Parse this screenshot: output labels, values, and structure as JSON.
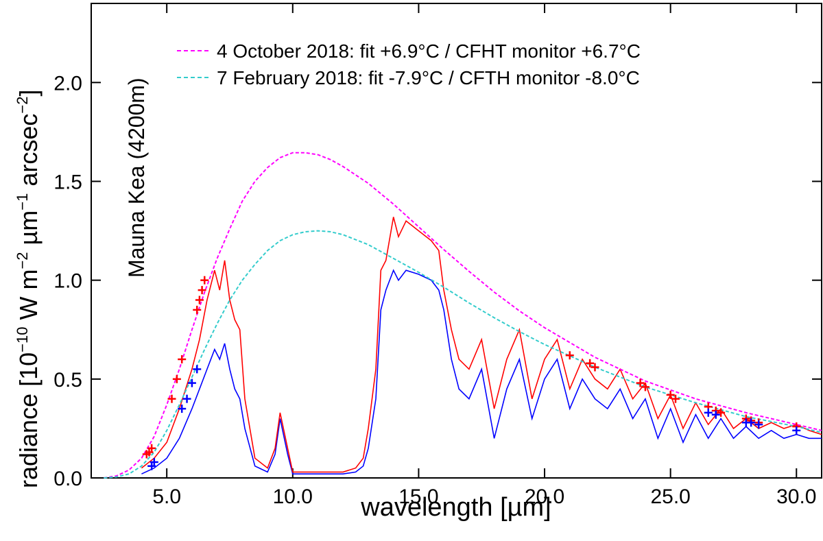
{
  "chart_data": {
    "type": "line",
    "xlabel": "wavelength [µm]",
    "ylabel": "radiance [10",
    "ylabel_exp1": "−10",
    "ylabel_mid1": " W m",
    "ylabel_exp2": "−2",
    "ylabel_mid2": " µm",
    "ylabel_exp3": "−1",
    "ylabel_mid3": " arcsec",
    "ylabel_exp4": "−2",
    "ylabel_end": "]",
    "annotation": "Mauna Kea (4200m)",
    "xlim": [
      2.0,
      31.0
    ],
    "ylim": [
      0.0,
      2.4
    ],
    "x_ticks": [
      5.0,
      10.0,
      15.0,
      20.0,
      25.0,
      30.0
    ],
    "x_tick_labels": [
      "5.0",
      "10.0",
      "15.0",
      "20.0",
      "25.0",
      "30.0"
    ],
    "y_ticks": [
      0.0,
      0.5,
      1.0,
      1.5,
      2.0
    ],
    "y_tick_labels": [
      "0.0",
      "0.5",
      "1.0",
      "1.5",
      "2.0"
    ],
    "grid": false,
    "legend_position": "top-right",
    "colors": {
      "fit_october": "#ff00ff",
      "fit_february": "#33cccc",
      "spectrum_october": "#ff0000",
      "spectrum_february": "#0000ff"
    },
    "series": [
      {
        "name": "4 October 2018: fit +6.9°C / CFHT monitor +6.7°C",
        "style": "dashed",
        "color": "#ff00ff",
        "x": [
          2.5,
          3.0,
          3.5,
          4.0,
          4.5,
          5.0,
          5.5,
          6.0,
          6.5,
          7.0,
          7.5,
          8.0,
          8.5,
          9.0,
          9.5,
          10.0,
          10.5,
          11.0,
          11.5,
          12.0,
          13.0,
          14.0,
          15.0,
          16.0,
          17.0,
          18.0,
          19.0,
          20.0,
          22.0,
          24.0,
          26.0,
          28.0,
          30.0,
          31.0
        ],
        "y": [
          0.0,
          0.01,
          0.04,
          0.1,
          0.21,
          0.37,
          0.55,
          0.75,
          0.94,
          1.11,
          1.26,
          1.4,
          1.5,
          1.57,
          1.62,
          1.645,
          1.645,
          1.635,
          1.61,
          1.575,
          1.49,
          1.385,
          1.27,
          1.155,
          1.045,
          0.94,
          0.845,
          0.76,
          0.61,
          0.49,
          0.4,
          0.33,
          0.27,
          0.24
        ]
      },
      {
        "name": "7 February 2018: fit -7.9°C / CFTH monitor -8.0°C",
        "style": "dashed",
        "color": "#33cccc",
        "x": [
          2.5,
          3.0,
          3.5,
          4.0,
          4.5,
          5.0,
          5.5,
          6.0,
          6.5,
          7.0,
          7.5,
          8.0,
          8.5,
          9.0,
          9.5,
          10.0,
          10.5,
          11.0,
          11.5,
          12.0,
          13.0,
          14.0,
          15.0,
          16.0,
          17.0,
          18.0,
          19.0,
          20.0,
          22.0,
          24.0,
          26.0,
          28.0,
          30.0,
          31.0
        ],
        "y": [
          0.0,
          0.005,
          0.02,
          0.06,
          0.13,
          0.24,
          0.37,
          0.51,
          0.65,
          0.78,
          0.9,
          1.0,
          1.08,
          1.15,
          1.2,
          1.23,
          1.245,
          1.25,
          1.245,
          1.23,
          1.18,
          1.11,
          1.04,
          0.965,
          0.885,
          0.81,
          0.74,
          0.675,
          0.56,
          0.46,
          0.38,
          0.31,
          0.26,
          0.23
        ]
      },
      {
        "name": "",
        "style": "solid",
        "color": "#ff0000",
        "x": [
          4.0,
          4.5,
          5.0,
          5.5,
          6.0,
          6.3,
          6.6,
          6.9,
          7.1,
          7.3,
          7.5,
          7.7,
          7.9,
          8.1,
          8.5,
          9.0,
          9.3,
          9.5,
          9.8,
          10.0,
          10.5,
          11.0,
          11.5,
          12.0,
          12.5,
          12.8,
          13.0,
          13.3,
          13.5,
          13.7,
          14.0,
          14.2,
          14.5,
          15.0,
          15.5,
          15.8,
          16.0,
          16.3,
          16.6,
          17.0,
          17.5,
          18.0,
          18.5,
          19.0,
          19.5,
          20.0,
          20.5,
          21.0,
          21.5,
          22.0,
          22.5,
          23.0,
          23.5,
          24.0,
          24.5,
          25.0,
          25.5,
          26.0,
          26.5,
          27.0,
          27.5,
          28.0,
          28.5,
          29.0,
          29.5,
          30.0,
          30.5,
          31.0
        ],
        "y": [
          0.05,
          0.1,
          0.18,
          0.35,
          0.55,
          0.7,
          0.9,
          1.05,
          0.95,
          1.1,
          0.9,
          0.8,
          0.75,
          0.4,
          0.1,
          0.05,
          0.15,
          0.33,
          0.15,
          0.03,
          0.03,
          0.03,
          0.03,
          0.03,
          0.05,
          0.1,
          0.25,
          0.55,
          1.05,
          1.1,
          1.32,
          1.22,
          1.3,
          1.25,
          1.2,
          1.15,
          0.95,
          0.75,
          0.6,
          0.55,
          0.7,
          0.35,
          0.6,
          0.75,
          0.4,
          0.6,
          0.7,
          0.45,
          0.6,
          0.5,
          0.45,
          0.55,
          0.4,
          0.48,
          0.3,
          0.42,
          0.25,
          0.38,
          0.27,
          0.35,
          0.25,
          0.3,
          0.25,
          0.28,
          0.25,
          0.27,
          0.24,
          0.22
        ]
      },
      {
        "name": "",
        "style": "solid",
        "color": "#0000ff",
        "x": [
          4.0,
          4.5,
          5.0,
          5.5,
          6.0,
          6.3,
          6.6,
          6.9,
          7.1,
          7.3,
          7.5,
          7.7,
          7.9,
          8.1,
          8.5,
          9.0,
          9.3,
          9.5,
          9.8,
          10.0,
          10.5,
          11.0,
          11.5,
          12.0,
          12.5,
          12.8,
          13.0,
          13.3,
          13.5,
          13.7,
          14.0,
          14.2,
          14.5,
          15.0,
          15.5,
          15.8,
          16.0,
          16.3,
          16.6,
          17.0,
          17.5,
          18.0,
          18.5,
          19.0,
          19.5,
          20.0,
          20.5,
          21.0,
          21.5,
          22.0,
          22.5,
          23.0,
          23.5,
          24.0,
          24.5,
          25.0,
          25.5,
          26.0,
          26.5,
          27.0,
          27.5,
          28.0,
          28.5,
          29.0,
          29.5,
          30.0,
          30.5,
          31.0
        ],
        "y": [
          0.02,
          0.05,
          0.1,
          0.2,
          0.35,
          0.45,
          0.55,
          0.65,
          0.6,
          0.68,
          0.55,
          0.45,
          0.4,
          0.25,
          0.06,
          0.03,
          0.12,
          0.3,
          0.12,
          0.02,
          0.02,
          0.02,
          0.02,
          0.02,
          0.03,
          0.06,
          0.15,
          0.4,
          0.85,
          0.95,
          1.05,
          1.0,
          1.05,
          1.03,
          1.0,
          0.95,
          0.85,
          0.6,
          0.45,
          0.4,
          0.55,
          0.2,
          0.45,
          0.6,
          0.3,
          0.5,
          0.6,
          0.35,
          0.5,
          0.4,
          0.35,
          0.45,
          0.3,
          0.4,
          0.2,
          0.35,
          0.18,
          0.32,
          0.2,
          0.3,
          0.2,
          0.26,
          0.2,
          0.24,
          0.2,
          0.22,
          0.2,
          0.2
        ]
      }
    ],
    "markers": [
      {
        "color": "#ff0000",
        "x": [
          4.2,
          4.3,
          4.4,
          5.2,
          5.4,
          5.6,
          6.2,
          6.3,
          6.4,
          6.5,
          21.0,
          21.8,
          22.0,
          23.8,
          24.0,
          25.0,
          25.2,
          26.5,
          26.8,
          27.0,
          28.0,
          28.2,
          28.5,
          30.0
        ],
        "y": [
          0.12,
          0.13,
          0.15,
          0.4,
          0.5,
          0.6,
          0.85,
          0.9,
          0.95,
          1.0,
          0.62,
          0.58,
          0.56,
          0.48,
          0.46,
          0.42,
          0.4,
          0.36,
          0.34,
          0.33,
          0.3,
          0.29,
          0.28,
          0.26
        ]
      },
      {
        "color": "#0000ff",
        "x": [
          4.4,
          4.5,
          5.6,
          5.8,
          6.0,
          6.2,
          26.5,
          26.8,
          28.0,
          28.2,
          28.5,
          30.0
        ],
        "y": [
          0.06,
          0.08,
          0.35,
          0.4,
          0.48,
          0.55,
          0.33,
          0.32,
          0.28,
          0.28,
          0.27,
          0.24
        ]
      }
    ]
  }
}
